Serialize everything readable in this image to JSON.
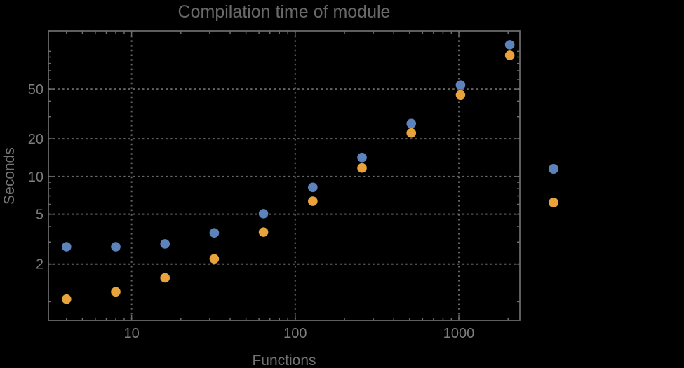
{
  "title": "Compilation time of module",
  "colors": {
    "background": "#000000",
    "frame": "#6e6e6e",
    "grid": "#646464",
    "title_text": "#696969",
    "tick_label_text": "#7e7e7e",
    "axis_label_text": "#747474",
    "series1": "#5C83BC",
    "series2": "#E9A33C"
  },
  "chart_data": {
    "type": "scatter",
    "title": "Compilation time of module",
    "xlabel": "Functions",
    "ylabel": "Seconds",
    "x_scale": "log",
    "y_scale": "log",
    "grid": "dotted",
    "xlim": [
      3.1,
      2360
    ],
    "ylim": [
      0.71,
      146
    ],
    "x": [
      4,
      8,
      16,
      32,
      64,
      128,
      256,
      512,
      1024,
      2048
    ],
    "series": [
      {
        "name": "series-1-blue",
        "color": "#5C83BC",
        "values": [
          2.75,
          2.75,
          2.9,
          3.55,
          5.05,
          8.2,
          14.2,
          26.5,
          54,
          113
        ]
      },
      {
        "name": "series-2-orange",
        "color": "#E9A33C",
        "values": [
          1.05,
          1.2,
          1.55,
          2.2,
          3.6,
          6.35,
          11.7,
          22.3,
          45,
          93
        ]
      }
    ],
    "x_major_ticks": [
      10,
      100,
      1000
    ],
    "x_major_labels": [
      "10",
      "100",
      "1000"
    ],
    "x_minor_ticks": [
      4,
      5,
      6,
      7,
      8,
      9,
      20,
      30,
      40,
      50,
      60,
      70,
      80,
      90,
      200,
      300,
      400,
      500,
      600,
      700,
      800,
      900,
      2000
    ],
    "y_major_ticks": [
      2,
      5,
      10,
      20,
      50
    ],
    "y_major_labels": [
      "2",
      "5",
      "10",
      "20",
      "50"
    ],
    "y_minor_ticks": [
      1,
      3,
      4,
      6,
      7,
      8,
      9,
      30,
      40,
      60,
      70,
      80,
      90,
      100
    ],
    "legend": {
      "position": "right-outside",
      "labels_visible": false,
      "markers": [
        {
          "name": "legend-marker-series1",
          "color": "#5C83BC"
        },
        {
          "name": "legend-marker-series2",
          "color": "#E9A33C"
        }
      ]
    }
  }
}
